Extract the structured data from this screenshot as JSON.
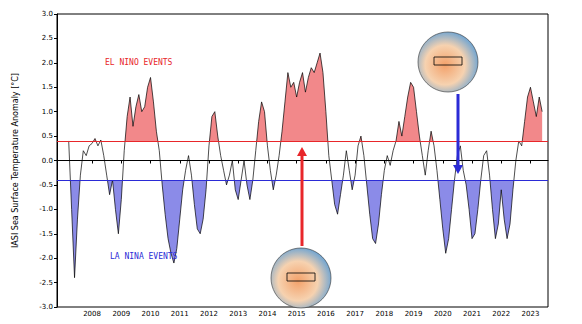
{
  "chart_data": {
    "type": "line",
    "ylabel": "IASI Sea Surface Temperature Anomaly [°C]",
    "x": [
      2007.2,
      2007.3,
      2007.4,
      2007.5,
      2007.6,
      2007.7,
      2007.8,
      2007.9,
      2008.0,
      2008.1,
      2008.2,
      2008.3,
      2008.4,
      2008.5,
      2008.6,
      2008.7,
      2008.8,
      2008.9,
      2009.0,
      2009.1,
      2009.2,
      2009.3,
      2009.4,
      2009.5,
      2009.6,
      2009.7,
      2009.8,
      2009.9,
      2010.0,
      2010.1,
      2010.2,
      2010.3,
      2010.4,
      2010.5,
      2010.6,
      2010.7,
      2010.8,
      2010.9,
      2011.0,
      2011.1,
      2011.2,
      2011.3,
      2011.4,
      2011.5,
      2011.6,
      2011.7,
      2011.8,
      2011.9,
      2012.0,
      2012.1,
      2012.2,
      2012.3,
      2012.4,
      2012.5,
      2012.6,
      2012.7,
      2012.8,
      2012.9,
      2013.0,
      2013.1,
      2013.2,
      2013.3,
      2013.4,
      2013.5,
      2013.6,
      2013.7,
      2013.8,
      2013.9,
      2014.0,
      2014.1,
      2014.2,
      2014.3,
      2014.4,
      2014.5,
      2014.6,
      2014.7,
      2014.8,
      2014.9,
      2015.0,
      2015.1,
      2015.2,
      2015.3,
      2015.4,
      2015.5,
      2015.6,
      2015.7,
      2015.8,
      2015.9,
      2016.0,
      2016.1,
      2016.2,
      2016.3,
      2016.4,
      2016.5,
      2016.6,
      2016.7,
      2016.8,
      2016.9,
      2017.0,
      2017.1,
      2017.2,
      2017.3,
      2017.4,
      2017.5,
      2017.6,
      2017.7,
      2017.8,
      2017.9,
      2018.0,
      2018.1,
      2018.2,
      2018.3,
      2018.4,
      2018.5,
      2018.6,
      2018.7,
      2018.8,
      2018.9,
      2019.0,
      2019.1,
      2019.2,
      2019.3,
      2019.4,
      2019.5,
      2019.6,
      2019.7,
      2019.8,
      2019.9,
      2020.0,
      2020.1,
      2020.2,
      2020.3,
      2020.4,
      2020.5,
      2020.6,
      2020.7,
      2020.8,
      2020.9,
      2021.0,
      2021.1,
      2021.2,
      2021.3,
      2021.4,
      2021.5,
      2021.6,
      2021.7,
      2021.8,
      2021.9,
      2022.0,
      2022.1,
      2022.2,
      2022.3,
      2022.4,
      2022.5,
      2022.6,
      2022.7,
      2022.8,
      2022.9,
      2023.0,
      2023.1,
      2023.2,
      2023.3,
      2023.4
    ],
    "values": [
      0.4,
      -1.0,
      -2.4,
      -1.2,
      -0.3,
      0.2,
      0.1,
      0.3,
      0.35,
      0.45,
      0.3,
      0.42,
      0.1,
      -0.3,
      -0.7,
      -0.4,
      -1.0,
      -1.5,
      -0.8,
      0.2,
      0.9,
      1.3,
      0.7,
      1.1,
      1.35,
      1.0,
      1.1,
      1.5,
      1.7,
      1.2,
      0.6,
      0.2,
      -0.5,
      -1.1,
      -1.6,
      -1.9,
      -2.1,
      -1.8,
      -1.2,
      -0.6,
      -0.2,
      0.1,
      -0.3,
      -0.9,
      -1.4,
      -1.5,
      -1.2,
      -0.6,
      0.3,
      0.9,
      1.0,
      0.5,
      0.1,
      -0.2,
      -0.5,
      -0.3,
      0.0,
      -0.6,
      -0.8,
      -0.4,
      0.0,
      -0.5,
      -0.8,
      -0.4,
      0.2,
      0.8,
      1.2,
      1.0,
      0.3,
      -0.2,
      -0.6,
      -0.3,
      0.1,
      0.6,
      1.2,
      1.8,
      1.5,
      1.6,
      1.3,
      1.6,
      1.8,
      1.4,
      1.7,
      1.9,
      1.8,
      2.0,
      2.2,
      1.8,
      1.0,
      0.1,
      -0.4,
      -0.9,
      -1.1,
      -0.7,
      -0.3,
      0.2,
      -0.2,
      -0.6,
      -0.3,
      0.3,
      0.5,
      0.1,
      -0.5,
      -1.1,
      -1.6,
      -1.7,
      -1.3,
      -0.7,
      -0.2,
      0.1,
      -0.1,
      0.2,
      0.4,
      0.8,
      0.5,
      0.9,
      1.3,
      1.6,
      1.5,
      1.0,
      0.5,
      0.1,
      -0.3,
      0.2,
      0.6,
      0.3,
      -0.2,
      -0.8,
      -1.4,
      -1.9,
      -1.6,
      -1.0,
      -0.4,
      0.1,
      0.3,
      -0.2,
      -0.5,
      -1.0,
      -1.6,
      -1.5,
      -1.0,
      -0.4,
      0.1,
      0.2,
      -0.3,
      -1.0,
      -1.6,
      -1.3,
      -0.6,
      -1.2,
      -1.6,
      -1.3,
      -0.6,
      0.0,
      0.4,
      0.3,
      0.8,
      1.3,
      1.5,
      1.2,
      0.9,
      1.3,
      1.0
    ],
    "color": "#000000",
    "thresholds": [
      {
        "name": "EL NINO EVENTS",
        "value": 0.4,
        "color": "#e8262a"
      },
      {
        "name": "LA NINA EVENTS",
        "value": -0.4,
        "color": "#2b2bd6"
      }
    ],
    "xlim": [
      2006.8,
      2023.6
    ],
    "xticks": [
      2008,
      2009,
      2010,
      2011,
      2012,
      2013,
      2014,
      2015,
      2016,
      2017,
      2018,
      2019,
      2020,
      2021,
      2022,
      2023
    ],
    "ylim": [
      -3,
      3
    ],
    "yticks": [
      {
        "value": -3,
        "label": "-3.0"
      },
      {
        "value": -2.5,
        "label": "-2.5"
      },
      {
        "value": -2,
        "label": "-2.0"
      },
      {
        "value": -1.5,
        "label": "-1.5"
      },
      {
        "value": -1,
        "label": "-1.0"
      },
      {
        "value": -0.5,
        "label": "-0.5"
      },
      {
        "value": 0,
        "label": "0.0"
      },
      {
        "value": 0.5,
        "label": "0.5"
      },
      {
        "value": 1,
        "label": "1.0"
      },
      {
        "value": 1.5,
        "label": "1.5"
      },
      {
        "value": 2,
        "label": "2.0"
      },
      {
        "value": 2.5,
        "label": "2.5"
      },
      {
        "value": 3,
        "label": "3.0"
      }
    ],
    "grid": false
  }
}
